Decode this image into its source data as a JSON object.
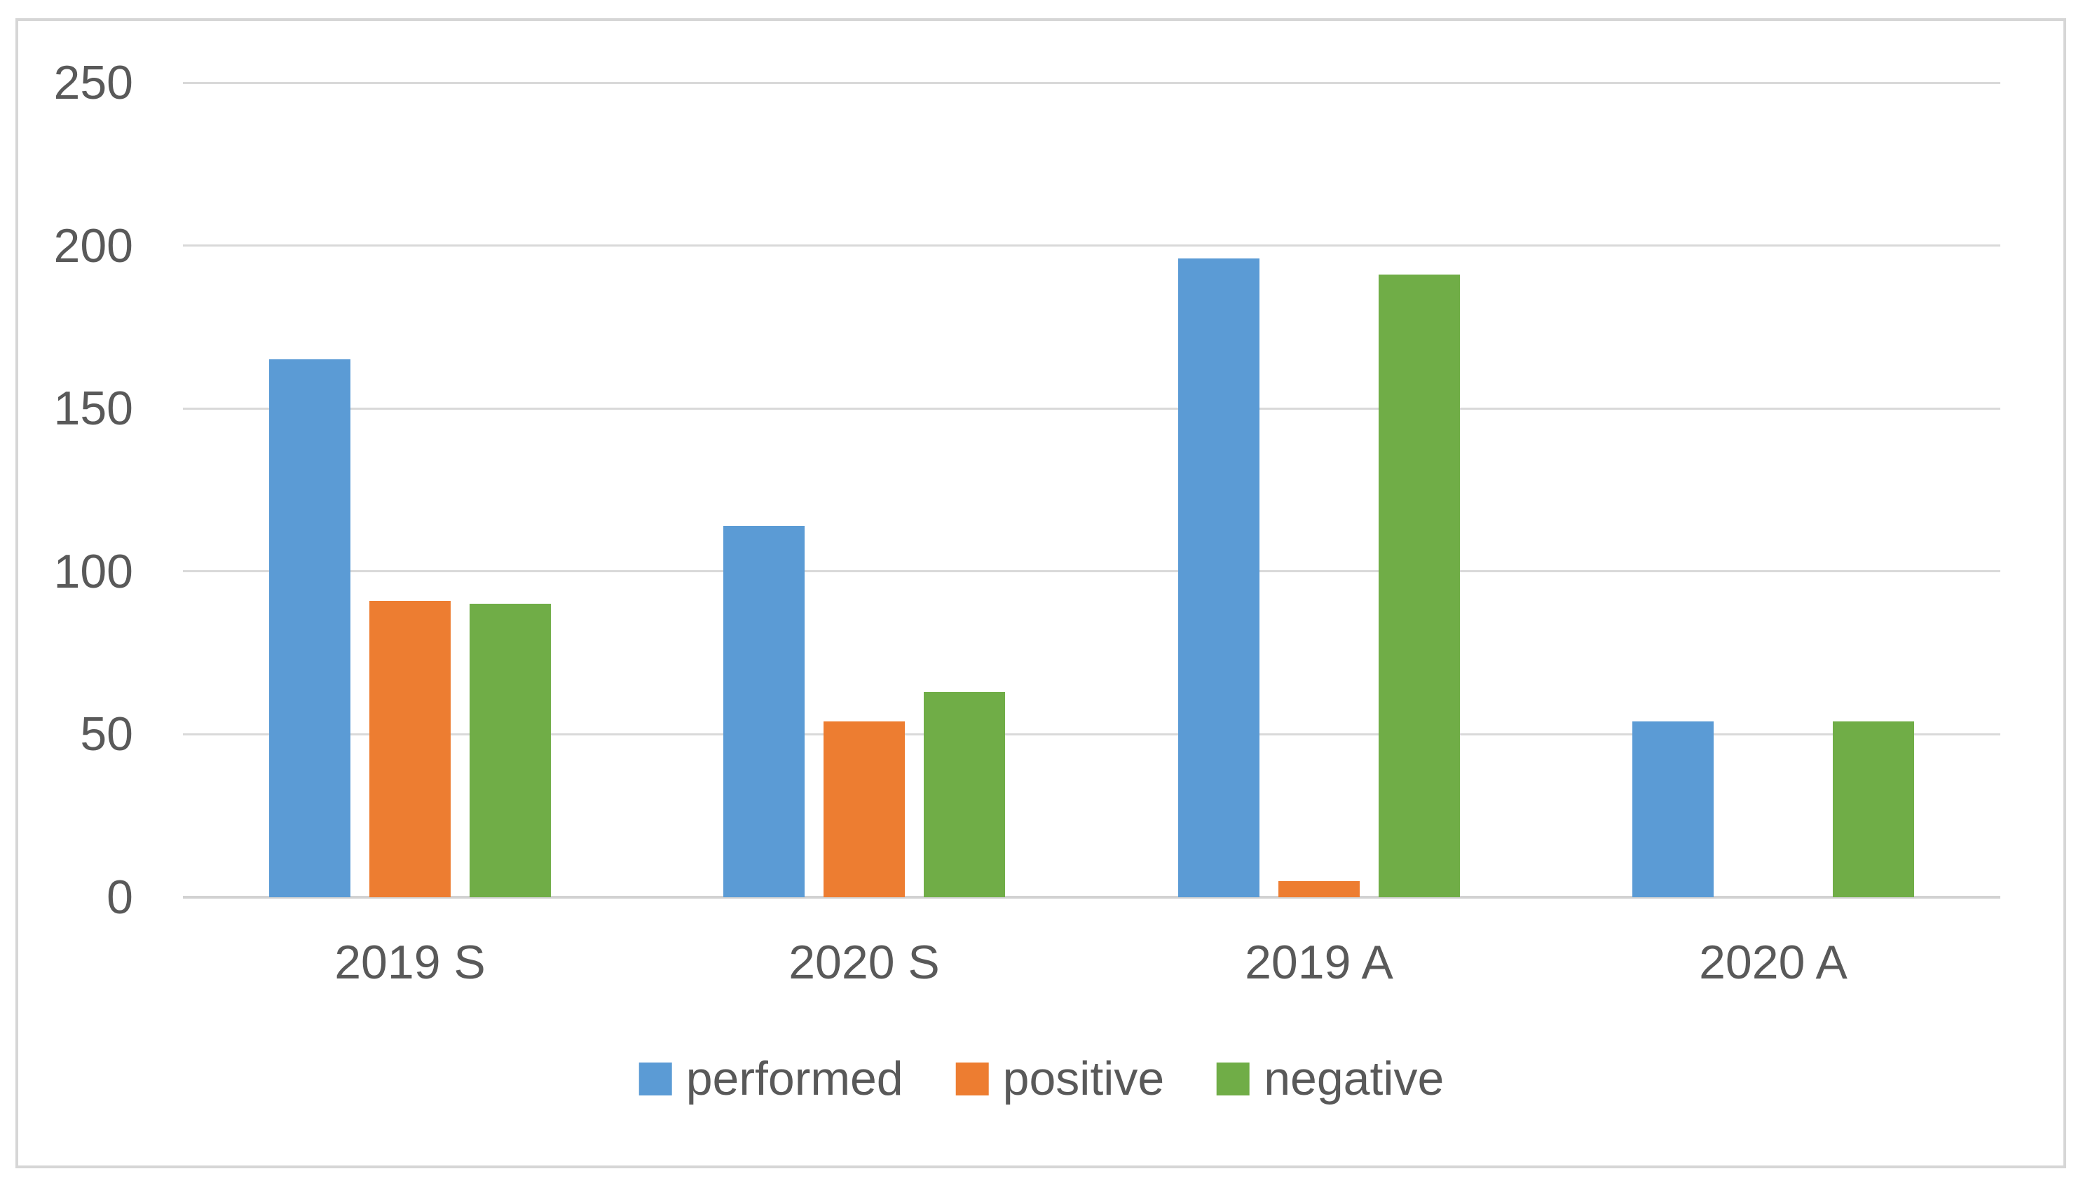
{
  "chart_data": {
    "type": "bar",
    "title": "",
    "xlabel": "",
    "ylabel": "",
    "categories": [
      "2019 S",
      "2020 S",
      "2019 A",
      "2020 A"
    ],
    "series": [
      {
        "name": "performed",
        "color": "#5B9BD5",
        "values": [
          165,
          114,
          196,
          54
        ]
      },
      {
        "name": "positive",
        "color": "#ED7D31",
        "values": [
          91,
          54,
          5,
          0
        ]
      },
      {
        "name": "negative",
        "color": "#70AD47",
        "values": [
          90,
          63,
          191,
          54
        ]
      }
    ],
    "ylim": [
      0,
      250
    ],
    "yticks": [
      0,
      50,
      100,
      150,
      200,
      250
    ],
    "grid": true,
    "legend_position": "bottom"
  },
  "colors": {
    "gridline": "#D9D9D9",
    "axis_text": "#595959",
    "frame_border": "#D6D6D6",
    "background": "#FFFFFF"
  }
}
